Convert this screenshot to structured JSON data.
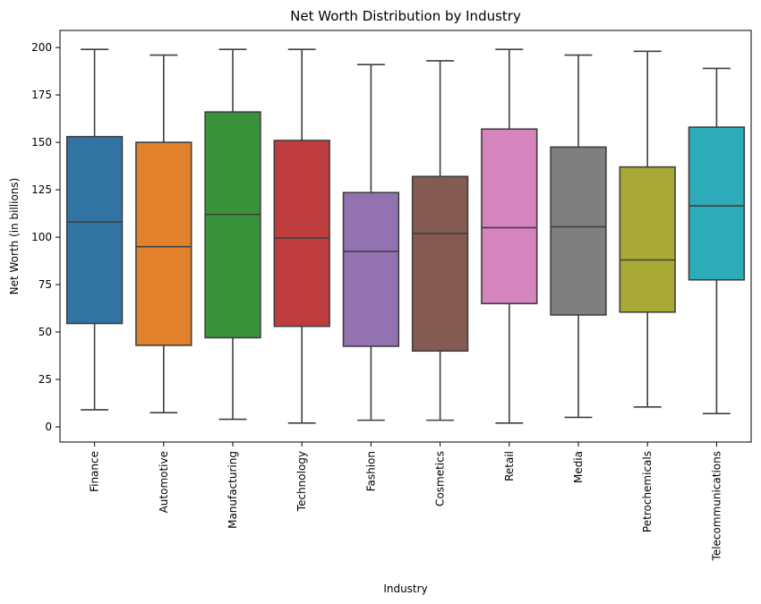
{
  "chart_data": {
    "type": "box",
    "title": "Net Worth Distribution by Industry",
    "xlabel": "Industry",
    "ylabel": "Net Worth (in billions)",
    "ylim": [
      -8,
      209
    ],
    "yticks": [
      0,
      25,
      50,
      75,
      100,
      125,
      150,
      175,
      200
    ],
    "grid": false,
    "categories": [
      "Finance",
      "Automotive",
      "Manufacturing",
      "Technology",
      "Fashion",
      "Cosmetics",
      "Retail",
      "Media",
      "Petrochemicals",
      "Telecommunications"
    ],
    "boxes": [
      {
        "min": 9,
        "q1": 54.5,
        "median": 108,
        "q3": 153,
        "max": 199,
        "color": "#3274a1"
      },
      {
        "min": 7.5,
        "q1": 43,
        "median": 95,
        "q3": 150,
        "max": 196,
        "color": "#e1812c"
      },
      {
        "min": 4,
        "q1": 47,
        "median": 112,
        "q3": 166,
        "max": 199,
        "color": "#3a923a"
      },
      {
        "min": 2,
        "q1": 53,
        "median": 99.5,
        "q3": 151,
        "max": 199,
        "color": "#c03d3e"
      },
      {
        "min": 3.5,
        "q1": 42.5,
        "median": 92.5,
        "q3": 123.5,
        "max": 191,
        "color": "#9372b2"
      },
      {
        "min": 3.5,
        "q1": 40,
        "median": 102,
        "q3": 132,
        "max": 193,
        "color": "#845b53"
      },
      {
        "min": 2,
        "q1": 65,
        "median": 105,
        "q3": 157,
        "max": 199,
        "color": "#d684bd"
      },
      {
        "min": 5,
        "q1": 59,
        "median": 105.5,
        "q3": 147.5,
        "max": 196,
        "color": "#7f7f7f"
      },
      {
        "min": 10.5,
        "q1": 60.5,
        "median": 88,
        "q3": 137,
        "max": 198,
        "color": "#a9aa35"
      },
      {
        "min": 7,
        "q1": 77.5,
        "median": 116.5,
        "q3": 158,
        "max": 189,
        "color": "#2eabb8"
      }
    ]
  }
}
